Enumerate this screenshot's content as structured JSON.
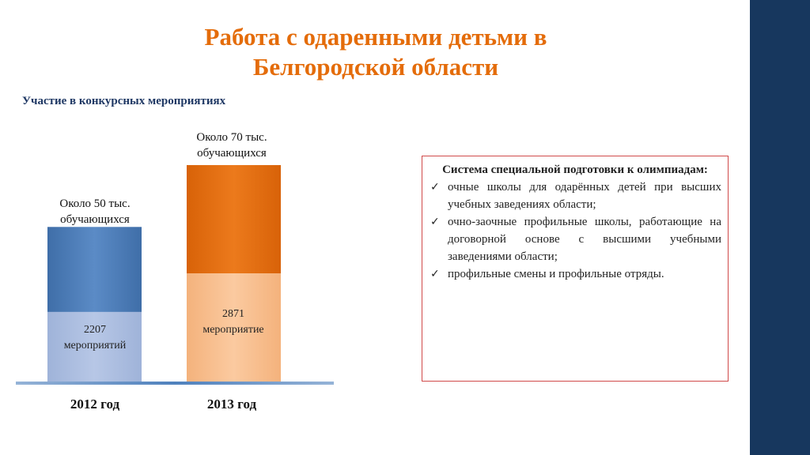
{
  "slide": {
    "title_line1": "Работа с одаренными детьми в",
    "title_line2": "Белгородской области",
    "section_heading": "Участие в конкурсных мероприятиях"
  },
  "colors": {
    "title": "#e46c0a",
    "side_band": "#17375e",
    "bar_2012_top": "#4f81bd",
    "bar_2012_bottom": "#a9bde0",
    "bar_2013_top": "#e46c0a",
    "bar_2013_bottom": "#f9c08f"
  },
  "chart_data": {
    "type": "bar",
    "stacked": true,
    "categories": [
      "2012 год",
      "2013 год"
    ],
    "bars": [
      {
        "category": "2012 год",
        "total": 50000,
        "top_label": [
          "Около 50 тыс.",
          "обучающихся"
        ],
        "inner_value": 2207,
        "inner_label": [
          "2207",
          "мероприятий"
        ]
      },
      {
        "category": "2013 год",
        "total": 70000,
        "top_label": [
          "Около 70 тыс.",
          "обучающихся"
        ],
        "inner_value": 2871,
        "inner_label": [
          "2871",
          "мероприятие"
        ]
      }
    ],
    "inner_portion": [
      0.45,
      0.5
    ],
    "grid": false,
    "legend": "none"
  },
  "olympiad_box": {
    "title": "Система специальной подготовки к олимпиадам:",
    "items": [
      "очные школы  для одарённых детей при высших учебных заведениях области;",
      "очно-заочные профильные школы, работающие на договорной основе с высшими учебными заведениями области;",
      "профильные смены и профильные отряды."
    ],
    "bullet_icon": "check-icon"
  }
}
